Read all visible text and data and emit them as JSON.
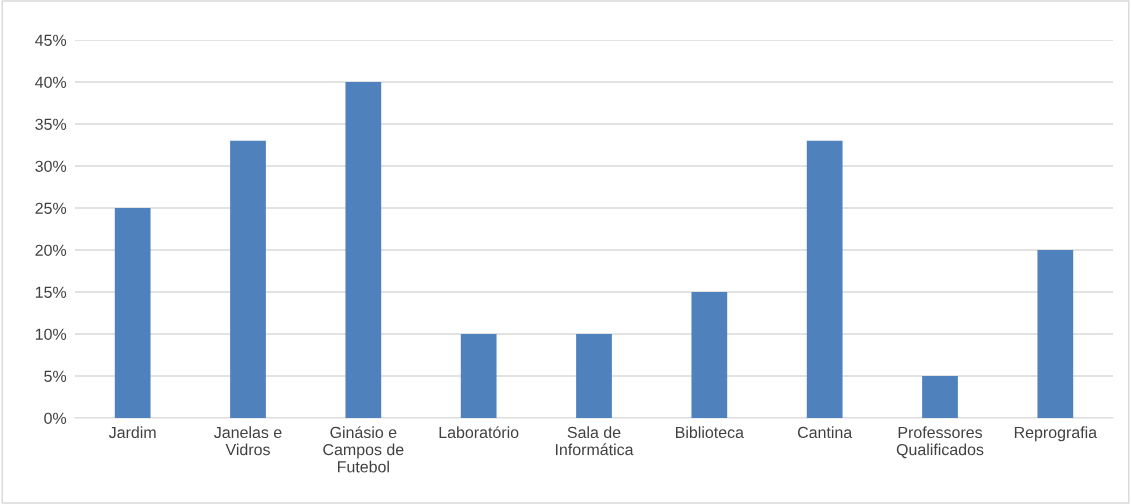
{
  "chart_data": {
    "type": "bar",
    "categories": [
      "Jardim",
      "Janelas e\nVidros",
      "Ginásio e\nCampos de\nFutebol",
      "Laboratório",
      "Sala de\nInformática",
      "Biblioteca",
      "Cantina",
      "Professores\nQualificados",
      "Reprografia"
    ],
    "values": [
      25,
      33,
      40,
      10,
      10,
      15,
      33,
      5,
      20
    ],
    "color": "#4f81bd",
    "ylim": [
      0,
      45
    ],
    "yticks": [
      {
        "value": 0,
        "label": "0%"
      },
      {
        "value": 5,
        "label": "5%"
      },
      {
        "value": 10,
        "label": "10%"
      },
      {
        "value": 15,
        "label": "15%"
      },
      {
        "value": 20,
        "label": "20%"
      },
      {
        "value": 25,
        "label": "25%"
      },
      {
        "value": 30,
        "label": "30%"
      },
      {
        "value": 35,
        "label": "35%"
      },
      {
        "value": 40,
        "label": "40%"
      },
      {
        "value": 45,
        "label": "45%"
      }
    ],
    "grid": "y"
  }
}
